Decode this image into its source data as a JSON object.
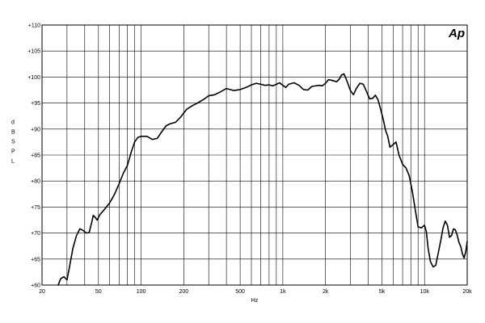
{
  "chart_data": {
    "type": "line",
    "title": "",
    "xlabel": "Hz",
    "ylabel": "d B S P L",
    "xscale": "log",
    "xlim": [
      20,
      20000
    ],
    "ylim": [
      60,
      110
    ],
    "grid": true,
    "brand": "Ap",
    "x_ticks": [
      {
        "value": 20,
        "label": "20"
      },
      {
        "value": 50,
        "label": "50"
      },
      {
        "value": 100,
        "label": "100"
      },
      {
        "value": 200,
        "label": "200"
      },
      {
        "value": 500,
        "label": "500"
      },
      {
        "value": 1000,
        "label": "1k"
      },
      {
        "value": 2000,
        "label": "2k"
      },
      {
        "value": 5000,
        "label": "5k"
      },
      {
        "value": 10000,
        "label": "10k"
      },
      {
        "value": 20000,
        "label": "20k"
      }
    ],
    "y_ticks": [
      {
        "value": 110,
        "label": "+110"
      },
      {
        "value": 105,
        "label": "+105"
      },
      {
        "value": 100,
        "label": "+100"
      },
      {
        "value": 95,
        "label": "+95"
      },
      {
        "value": 90,
        "label": "+90"
      },
      {
        "value": 85,
        "label": "+85"
      },
      {
        "value": 80,
        "label": "+80"
      },
      {
        "value": 75,
        "label": "+75"
      },
      {
        "value": 70,
        "label": "+70"
      },
      {
        "value": 65,
        "label": "+65"
      },
      {
        "value": 60,
        "label": "+60"
      }
    ],
    "series": [
      {
        "color": "#000000",
        "points": [
          [
            26,
            60
          ],
          [
            27,
            61.2
          ],
          [
            28.5,
            61.6
          ],
          [
            30,
            61
          ],
          [
            31,
            63
          ],
          [
            33,
            67
          ],
          [
            35,
            69.5
          ],
          [
            37,
            70.8
          ],
          [
            39,
            70.5
          ],
          [
            41,
            70
          ],
          [
            43,
            70.1
          ],
          [
            45,
            72.2
          ],
          [
            46,
            73.4
          ],
          [
            47.5,
            73
          ],
          [
            49,
            72.5
          ],
          [
            51,
            73.5
          ],
          [
            55,
            74.5
          ],
          [
            60,
            75.8
          ],
          [
            65,
            77.5
          ],
          [
            70,
            79.5
          ],
          [
            75,
            81.5
          ],
          [
            80,
            83
          ],
          [
            85,
            85.5
          ],
          [
            90,
            87.5
          ],
          [
            95,
            88.4
          ],
          [
            100,
            88.6
          ],
          [
            110,
            88.6
          ],
          [
            120,
            88
          ],
          [
            130,
            88.2
          ],
          [
            140,
            89.5
          ],
          [
            150,
            90.6
          ],
          [
            160,
            91
          ],
          [
            175,
            91.3
          ],
          [
            190,
            92.3
          ],
          [
            210,
            93.8
          ],
          [
            230,
            94.5
          ],
          [
            250,
            95
          ],
          [
            280,
            95.8
          ],
          [
            300,
            96.4
          ],
          [
            330,
            96.6
          ],
          [
            360,
            97.1
          ],
          [
            400,
            97.8
          ],
          [
            450,
            97.4
          ],
          [
            500,
            97.6
          ],
          [
            550,
            98
          ],
          [
            600,
            98.5
          ],
          [
            650,
            98.8
          ],
          [
            700,
            98.6
          ],
          [
            750,
            98.4
          ],
          [
            800,
            98.5
          ],
          [
            850,
            98.3
          ],
          [
            900,
            98.6
          ],
          [
            950,
            98.9
          ],
          [
            1000,
            98.4
          ],
          [
            1050,
            98
          ],
          [
            1100,
            98.6
          ],
          [
            1200,
            98.9
          ],
          [
            1300,
            98.4
          ],
          [
            1400,
            97.6
          ],
          [
            1500,
            97.5
          ],
          [
            1600,
            98.2
          ],
          [
            1800,
            98.4
          ],
          [
            1900,
            98.3
          ],
          [
            2000,
            98.8
          ],
          [
            2100,
            99.5
          ],
          [
            2200,
            99.4
          ],
          [
            2400,
            99.1
          ],
          [
            2500,
            99.6
          ],
          [
            2600,
            100.4
          ],
          [
            2700,
            100.6
          ],
          [
            2800,
            99.6
          ],
          [
            2900,
            98.5
          ],
          [
            3000,
            97.4
          ],
          [
            3150,
            96.6
          ],
          [
            3300,
            97.8
          ],
          [
            3500,
            98.8
          ],
          [
            3700,
            98.6
          ],
          [
            3900,
            97.2
          ],
          [
            4100,
            95.8
          ],
          [
            4300,
            95.9
          ],
          [
            4500,
            96.5
          ],
          [
            4700,
            95.6
          ],
          [
            4900,
            93.8
          ],
          [
            5100,
            92
          ],
          [
            5300,
            89.8
          ],
          [
            5500,
            88.6
          ],
          [
            5700,
            86.5
          ],
          [
            6000,
            87
          ],
          [
            6300,
            87.5
          ],
          [
            6600,
            85
          ],
          [
            7000,
            83.2
          ],
          [
            7400,
            82.5
          ],
          [
            7800,
            81
          ],
          [
            8200,
            78
          ],
          [
            8600,
            74.5
          ],
          [
            9000,
            71.2
          ],
          [
            9500,
            71
          ],
          [
            10000,
            71.5
          ],
          [
            10300,
            70.2
          ],
          [
            10600,
            67
          ],
          [
            11000,
            64.5
          ],
          [
            11500,
            63.5
          ],
          [
            12000,
            63.8
          ],
          [
            12500,
            66.2
          ],
          [
            13000,
            68.5
          ],
          [
            13500,
            71
          ],
          [
            14000,
            72.3
          ],
          [
            14500,
            71.5
          ],
          [
            15000,
            69.2
          ],
          [
            15500,
            69.5
          ],
          [
            16000,
            70.8
          ],
          [
            16500,
            70.6
          ],
          [
            17000,
            69.6
          ],
          [
            17500,
            68.2
          ],
          [
            18000,
            67.4
          ],
          [
            18500,
            66
          ],
          [
            19000,
            65.2
          ],
          [
            19500,
            66.3
          ],
          [
            20000,
            68.4
          ]
        ]
      }
    ]
  }
}
